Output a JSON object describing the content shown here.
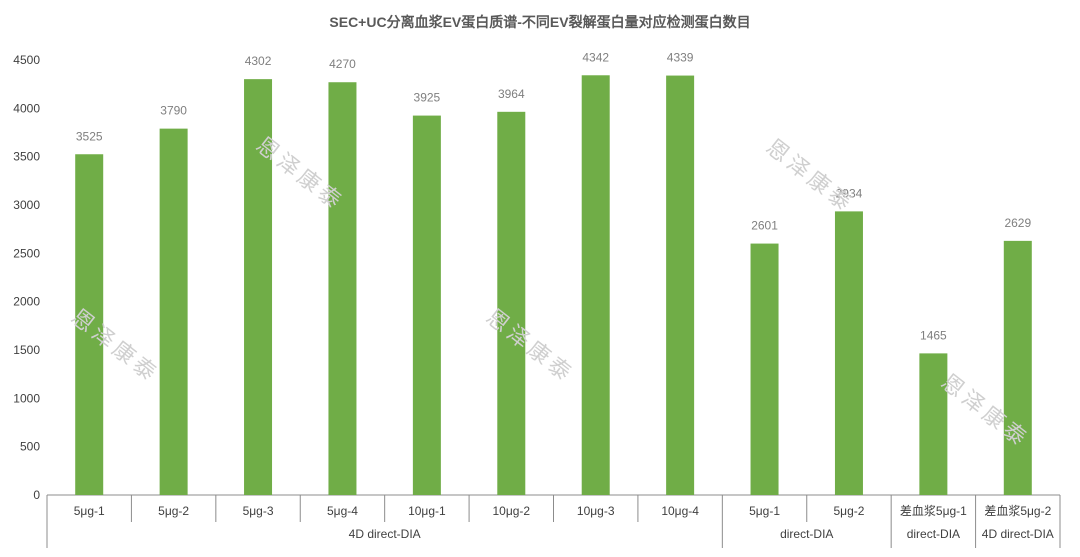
{
  "chart_data": {
    "type": "bar",
    "title": "SEC+UC分离血浆EV蛋白质谱-不同EV裂解蛋白量对应检测蛋白数目",
    "categories": [
      "5μg-1",
      "5μg-2",
      "5μg-3",
      "5μg-4",
      "10μg-1",
      "10μg-2",
      "10μg-3",
      "10μg-4",
      "5μg-1",
      "5μg-2",
      "差血浆5μg-1",
      "差血浆5μg-2"
    ],
    "values": [
      3525,
      3790,
      4302,
      4270,
      3925,
      3964,
      4342,
      4339,
      2601,
      2934,
      1465,
      2629
    ],
    "groups": [
      {
        "label": "4D direct-DIA",
        "count": 8
      },
      {
        "label": "direct-DIA",
        "count": 2
      },
      {
        "label": "direct-DIA",
        "count": 1
      },
      {
        "label": "4D direct-DIA",
        "count": 1
      }
    ],
    "ylim": [
      0,
      4500
    ],
    "yticks": [
      0,
      500,
      1000,
      1500,
      2000,
      2500,
      3000,
      3500,
      4000,
      4500
    ],
    "xlabel": "",
    "ylabel": "",
    "grid": false,
    "bar_color": "#70ad47"
  },
  "watermark": "恩泽康泰"
}
